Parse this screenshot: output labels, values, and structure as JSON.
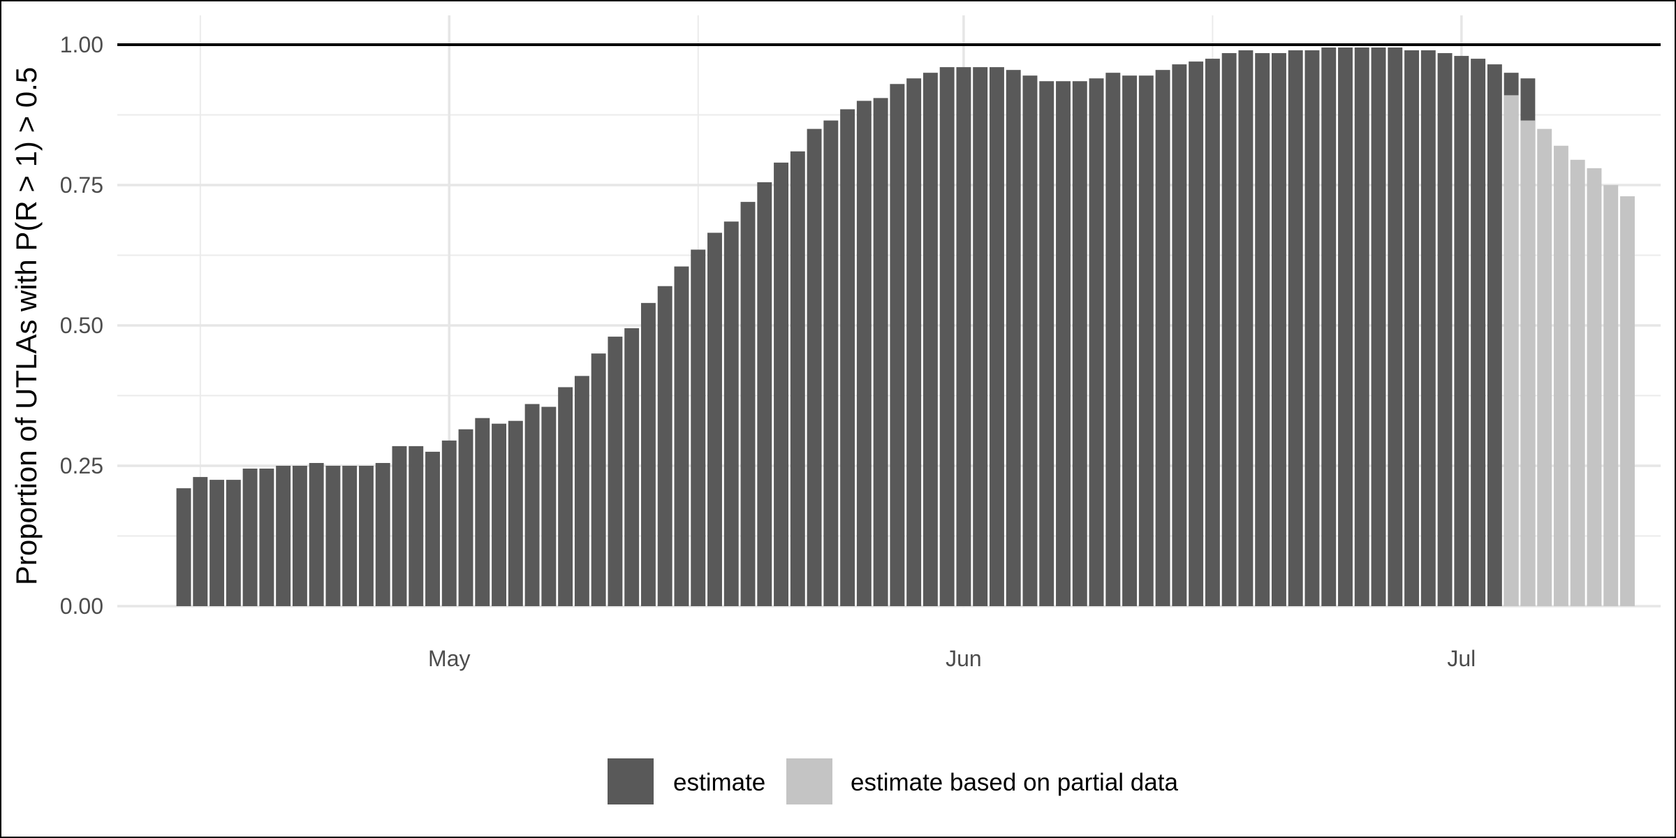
{
  "chart_data": {
    "type": "bar",
    "title": "",
    "xlabel": "",
    "ylabel": "Proportion of UTLAs with P(R > 1) > 0.5",
    "x_start": "2020-04-15",
    "x_end": "2020-07-11",
    "xlim": [
      "2020-04-11",
      "2020-07-13"
    ],
    "ylim": [
      0,
      1
    ],
    "y_ticks": [
      0,
      0.25,
      0.5,
      0.75,
      1
    ],
    "y_tick_labels": [
      "0.00",
      "0.25",
      "0.50",
      "0.75",
      "1.00"
    ],
    "x_major_ticks": [
      {
        "date": "2020-05-01",
        "label": "May"
      },
      {
        "date": "2020-06-01",
        "label": "Jun"
      },
      {
        "date": "2020-07-01",
        "label": "Jul"
      }
    ],
    "x_minor_ticks": [
      "2020-04-16",
      "2020-05-16",
      "2020-06-16"
    ],
    "reference_line": 1.0,
    "grid": true,
    "legend_position": "bottom",
    "series": [
      {
        "name": "estimate",
        "color": "#595959",
        "start": "2020-04-15",
        "values": [
          0.21,
          0.23,
          0.225,
          0.225,
          0.245,
          0.245,
          0.25,
          0.25,
          0.255,
          0.25,
          0.25,
          0.25,
          0.255,
          0.285,
          0.285,
          0.275,
          0.295,
          0.315,
          0.335,
          0.325,
          0.33,
          0.36,
          0.355,
          0.39,
          0.41,
          0.45,
          0.48,
          0.495,
          0.54,
          0.57,
          0.605,
          0.635,
          0.665,
          0.685,
          0.72,
          0.755,
          0.79,
          0.81,
          0.85,
          0.865,
          0.885,
          0.9,
          0.905,
          0.93,
          0.94,
          0.95,
          0.96,
          0.96,
          0.96,
          0.96,
          0.955,
          0.945,
          0.935,
          0.935,
          0.935,
          0.94,
          0.95,
          0.945,
          0.945,
          0.955,
          0.965,
          0.97,
          0.975,
          0.985,
          0.99,
          0.985,
          0.985,
          0.99,
          0.99,
          0.995,
          0.995,
          0.995,
          0.995,
          0.995,
          0.99,
          0.99,
          0.985,
          0.98,
          0.975,
          0.965,
          0.95,
          0.94
        ]
      },
      {
        "name": "estimate based on partial data",
        "color": "#c4c4c4",
        "start": "2020-07-04",
        "values": [
          0.91,
          0.865,
          0.85,
          0.82,
          0.795,
          0.78,
          0.75,
          0.73
        ]
      }
    ]
  }
}
